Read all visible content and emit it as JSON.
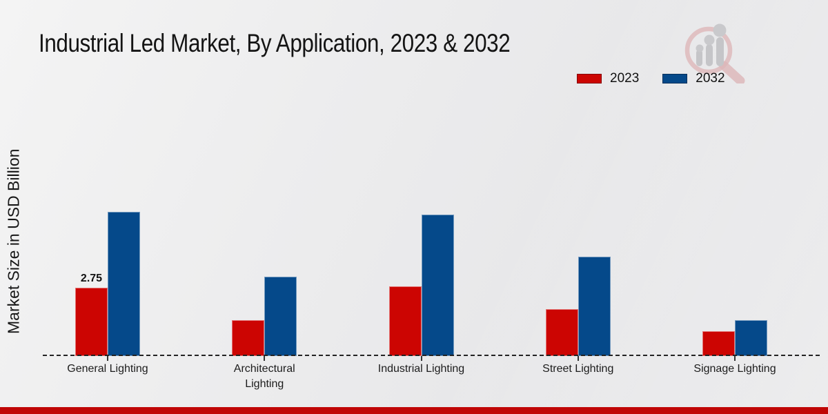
{
  "header": {
    "title": "Industrial Led Market, By Application, 2023 & 2032"
  },
  "axis": {
    "y_label": "Market Size in USD Billion"
  },
  "legend": {
    "items": [
      {
        "label": "2023",
        "color": "#cc0502"
      },
      {
        "label": "2032",
        "color": "#05498a"
      }
    ]
  },
  "chart_data": {
    "type": "bar",
    "title": "Industrial Led Market, By Application, 2023 & 2032",
    "xlabel": "",
    "ylabel": "Market Size in USD Billion",
    "categories": [
      "General Lighting",
      "Architectural Lighting",
      "Industrial Lighting",
      "Street Lighting",
      "Signage Lighting"
    ],
    "series": [
      {
        "name": "2023",
        "color": "#cc0502",
        "values": [
          2.75,
          1.45,
          2.8,
          1.9,
          1.0
        ]
      },
      {
        "name": "2032",
        "color": "#05498a",
        "values": [
          5.8,
          3.2,
          5.7,
          4.0,
          1.45
        ]
      }
    ],
    "value_labels": [
      {
        "series_index": 0,
        "category_index": 0,
        "text": "2.75"
      }
    ],
    "ylim": [
      0,
      6.5
    ],
    "grid": false,
    "legend_position": "top-right",
    "baseline_style": "dashed",
    "axis_line_color": "#222222"
  },
  "footer": {
    "accent_color": "#c00606"
  },
  "watermark": {
    "name": "market-research-magnifier-logo"
  }
}
